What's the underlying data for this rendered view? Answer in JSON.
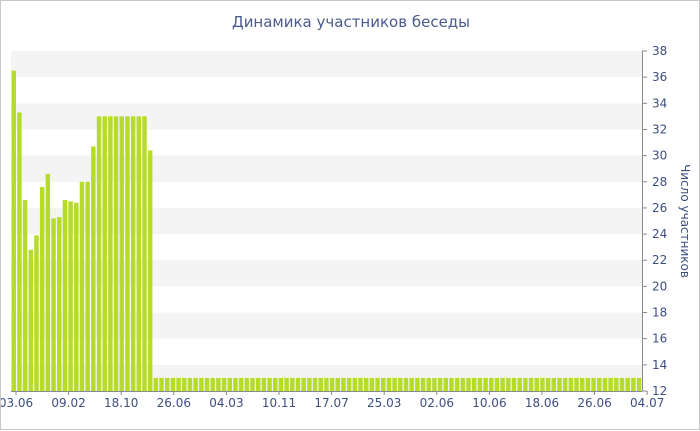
{
  "chart_data": {
    "type": "bar",
    "title": "Динамика участников беседы",
    "xlabel": "",
    "ylabel": "Число участников",
    "ylim": [
      12,
      38
    ],
    "yticks": [
      12,
      14,
      16,
      18,
      20,
      22,
      24,
      26,
      28,
      30,
      32,
      34,
      36,
      38
    ],
    "x_tick_labels": [
      "03.06",
      "09.02",
      "18.10",
      "26.06",
      "04.03",
      "10.11",
      "17.07",
      "25.03",
      "02.06",
      "10.06",
      "18.06",
      "26.06",
      "04.07"
    ],
    "y_axis_position": "right",
    "grid": "horizontal alternating bands",
    "bar_color": "#b5dc2a",
    "values": [
      36.5,
      33.3,
      26.6,
      22.8,
      23.9,
      27.6,
      28.6,
      25.2,
      25.3,
      26.6,
      26.5,
      26.4,
      28.0,
      28.0,
      30.7,
      33.0,
      33.0,
      33.0,
      33.0,
      33.0,
      33.0,
      33.0,
      33.0,
      33.0,
      30.4,
      13.0,
      13.0,
      13.0,
      13.0,
      13.0,
      13.0,
      13.0,
      13.0,
      13.0,
      13.0,
      13.0,
      13.0,
      13.0,
      13.0,
      13.0,
      13.0,
      13.0,
      13.0,
      13.0,
      13.0,
      13.0,
      13.0,
      13.0,
      13.0,
      13.0,
      13.0,
      13.0,
      13.0,
      13.0,
      13.0,
      13.0,
      13.0,
      13.0,
      13.0,
      13.0,
      13.0,
      13.0,
      13.0,
      13.0,
      13.0,
      13.0,
      13.0,
      13.0,
      13.0,
      13.0,
      13.0,
      13.0,
      13.0,
      13.0,
      13.0,
      13.0,
      13.0,
      13.0,
      13.0,
      13.0,
      13.0,
      13.0,
      13.0,
      13.0,
      13.0,
      13.0,
      13.0,
      13.0,
      13.0,
      13.0,
      13.0,
      13.0,
      13.0,
      13.0,
      13.0,
      13.0,
      13.0,
      13.0,
      13.0,
      13.0,
      13.0,
      13.0,
      13.0,
      13.0,
      13.0,
      13.0,
      13.0,
      13.0,
      13.0,
      13.0,
      13.0
    ]
  }
}
